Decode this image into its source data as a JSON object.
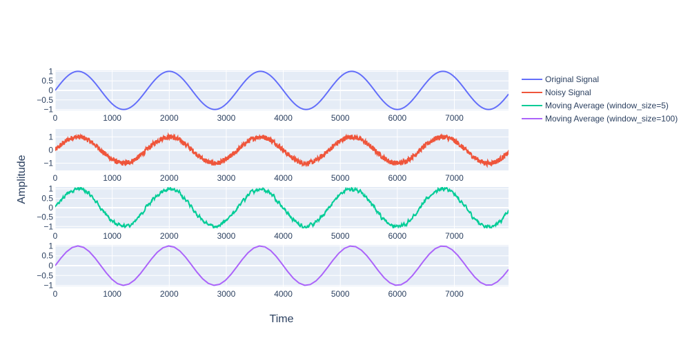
{
  "chart_data": {
    "type": "line",
    "xlabel": "Time",
    "ylabel": "Amplitude",
    "x_range": [
      0,
      7950
    ],
    "x_ticks": [
      0,
      1000,
      2000,
      3000,
      4000,
      5000,
      6000,
      7000
    ],
    "x_tick_labels": [
      "0",
      "1000",
      "2000",
      "3000",
      "4000",
      "5000",
      "6000",
      "7000"
    ],
    "signal": {
      "period": 1600,
      "amplitude": 1,
      "function": "sine"
    },
    "legend_position": "right",
    "series": [
      {
        "name": "Original Signal",
        "color": "#636efa",
        "ylim": [
          -1.05,
          1.05
        ],
        "y_ticks": [
          1,
          0.5,
          0,
          -0.5,
          -1
        ],
        "y_tick_labels": [
          "1",
          "0.5",
          "0",
          "−0.5",
          "−1"
        ],
        "noise": 0,
        "smoothing_window": 0
      },
      {
        "name": "Noisy Signal",
        "color": "#ef553b",
        "ylim": [
          -1.55,
          1.6
        ],
        "y_ticks": [
          1,
          0,
          -1
        ],
        "y_tick_labels": [
          "1",
          "0",
          "−1"
        ],
        "noise": 0.12,
        "smoothing_window": 1
      },
      {
        "name": "Moving Average (window_size=5)",
        "color": "#00cc96",
        "ylim": [
          -1.1,
          1.1
        ],
        "y_ticks": [
          1,
          0.5,
          0,
          -0.5,
          -1
        ],
        "y_tick_labels": [
          "1",
          "0.5",
          "0",
          "−0.5",
          "−1"
        ],
        "noise": 0.12,
        "smoothing_window": 5
      },
      {
        "name": "Moving Average (window_size=100)",
        "color": "#ab63fa",
        "ylim": [
          -1.05,
          1.05
        ],
        "y_ticks": [
          1,
          0.5,
          0,
          -0.5,
          -1
        ],
        "y_tick_labels": [
          "1",
          "0.5",
          "0",
          "−0.5",
          "−1"
        ],
        "noise": 0,
        "smoothing_window": 100
      }
    ]
  }
}
